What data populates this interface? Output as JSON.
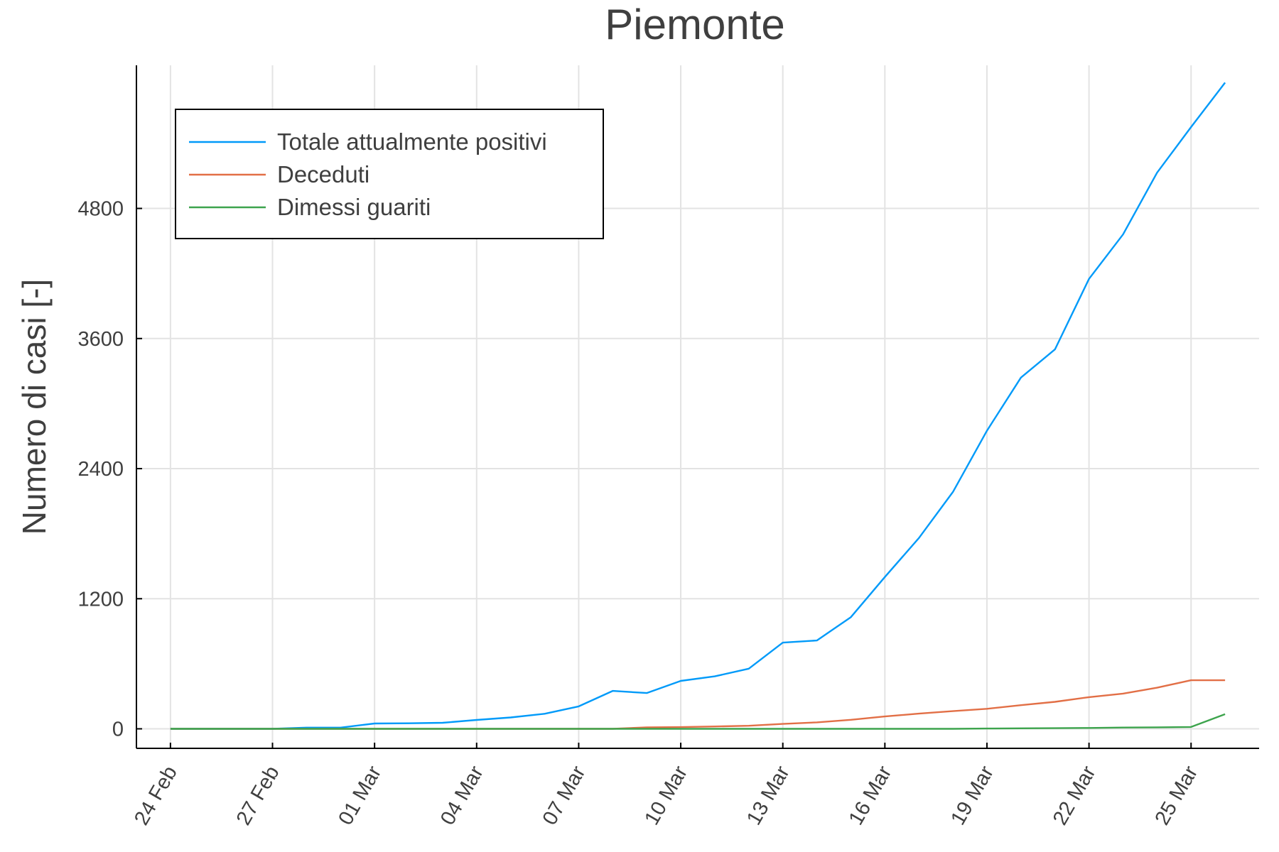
{
  "chart_data": {
    "type": "line",
    "title": "Piemonte",
    "ylabel": "Numero di casi [-]",
    "xlabel": "",
    "x_start_date": "2020-02-24",
    "x_tick_labels": [
      "24 Feb",
      "27 Feb",
      "01 Mar",
      "04 Mar",
      "07 Mar",
      "10 Mar",
      "13 Mar",
      "16 Mar",
      "19 Mar",
      "22 Mar",
      "25 Mar"
    ],
    "x_tick_dates": [
      "2020-02-24",
      "2020-02-27",
      "2020-03-01",
      "2020-03-04",
      "2020-03-07",
      "2020-03-10",
      "2020-03-13",
      "2020-03-16",
      "2020-03-19",
      "2020-03-22",
      "2020-03-25"
    ],
    "x_range_dates": [
      "2020-02-23",
      "2020-03-27"
    ],
    "y_ticks": [
      0,
      1200,
      2400,
      3600,
      4800
    ],
    "y_tick_labels": [
      "0",
      "1200",
      "2400",
      "3600",
      "4800"
    ],
    "ylim": [
      -180,
      6120
    ],
    "grid": true,
    "legend_position": "top-left",
    "dates": [
      "2020-02-24",
      "2020-02-25",
      "2020-02-26",
      "2020-02-27",
      "2020-02-28",
      "2020-02-29",
      "2020-03-01",
      "2020-03-02",
      "2020-03-03",
      "2020-03-04",
      "2020-03-05",
      "2020-03-06",
      "2020-03-07",
      "2020-03-08",
      "2020-03-09",
      "2020-03-10",
      "2020-03-11",
      "2020-03-12",
      "2020-03-13",
      "2020-03-14",
      "2020-03-15",
      "2020-03-16",
      "2020-03-17",
      "2020-03-18",
      "2020-03-19",
      "2020-03-20",
      "2020-03-21",
      "2020-03-22",
      "2020-03-23",
      "2020-03-24",
      "2020-03-25",
      "2020-03-26"
    ],
    "series": [
      {
        "name": "Totale attualmente positivi",
        "color": "#009af9",
        "values": [
          0,
          0,
          0,
          0,
          11,
          11,
          49,
          51,
          56,
          82,
          105,
          139,
          207,
          350,
          330,
          442,
          484,
          555,
          795,
          815,
          1030,
          1400,
          1760,
          2185,
          2750,
          3240,
          3500,
          4150,
          4560,
          5130,
          5550,
          5960
        ]
      },
      {
        "name": "Deceduti",
        "color": "#e26f46",
        "values": [
          0,
          0,
          0,
          0,
          0,
          0,
          0,
          0,
          0,
          0,
          0,
          0,
          0,
          0,
          13,
          16,
          22,
          28,
          45,
          60,
          83,
          114,
          140,
          163,
          185,
          218,
          249,
          292,
          325,
          379,
          448,
          448
        ]
      },
      {
        "name": "Dimessi guariti",
        "color": "#3da44d",
        "values": [
          0,
          0,
          0,
          0,
          0,
          0,
          0,
          0,
          0,
          0,
          0,
          0,
          0,
          0,
          0,
          0,
          0,
          0,
          0,
          0,
          0,
          0,
          0,
          0,
          3,
          5,
          6,
          8,
          12,
          14,
          17,
          135
        ]
      }
    ]
  }
}
